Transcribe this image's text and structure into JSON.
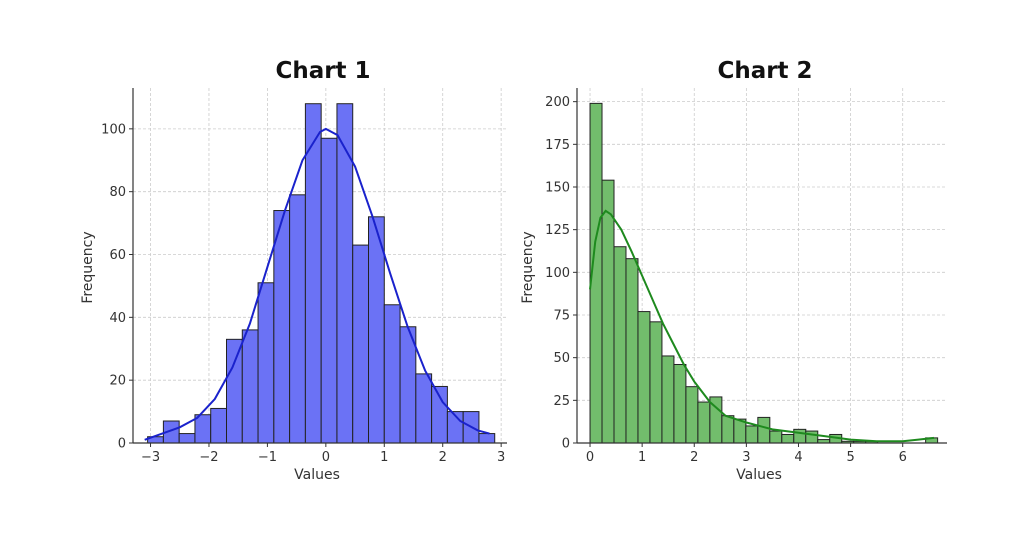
{
  "chart_data": [
    {
      "type": "bar",
      "title": "Chart 1",
      "xlabel": "Values",
      "ylabel": "Frequency",
      "bar_color": "#6b72f5",
      "line_color": "#1a22cc",
      "xlim": [
        -3.3,
        3.1
      ],
      "ylim": [
        0,
        113
      ],
      "xticks": [
        -3,
        -2,
        -1,
        0,
        1,
        2,
        3
      ],
      "xtick_labels": [
        "−3",
        "−2",
        "−1",
        "0",
        "1",
        "2",
        "3"
      ],
      "yticks": [
        0,
        20,
        40,
        60,
        80,
        100
      ],
      "ytick_labels": [
        "0",
        "20",
        "40",
        "60",
        "80",
        "100"
      ],
      "bin_edges": [
        -3.05,
        -2.78,
        -2.51,
        -2.24,
        -1.97,
        -1.7,
        -1.43,
        -1.16,
        -0.89,
        -0.62,
        -0.35,
        -0.08,
        0.19,
        0.46,
        0.73,
        1.0,
        1.27,
        1.54,
        1.81,
        2.08,
        2.35,
        2.62,
        2.89
      ],
      "values": [
        2,
        7,
        3,
        9,
        11,
        33,
        36,
        51,
        74,
        79,
        108,
        97,
        108,
        63,
        72,
        44,
        37,
        22,
        18,
        10,
        10,
        3
      ],
      "kde": {
        "x": [
          -3.1,
          -2.8,
          -2.5,
          -2.2,
          -1.9,
          -1.6,
          -1.3,
          -1.0,
          -0.7,
          -0.4,
          -0.1,
          0.0,
          0.2,
          0.5,
          0.8,
          1.1,
          1.4,
          1.7,
          2.0,
          2.3,
          2.6,
          2.8
        ],
        "y": [
          1,
          3,
          5,
          8,
          14,
          24,
          38,
          56,
          74,
          90,
          99,
          100,
          98,
          88,
          72,
          54,
          37,
          23,
          13,
          7,
          4,
          3
        ]
      },
      "grid": true
    },
    {
      "type": "bar",
      "title": "Chart 2",
      "xlabel": "Values",
      "ylabel": "Frequency",
      "bar_color": "#72bd6c",
      "line_color": "#1e8a1e",
      "xlim": [
        -0.25,
        6.85
      ],
      "ylim": [
        0,
        208
      ],
      "xticks": [
        0,
        1,
        2,
        3,
        4,
        5,
        6
      ],
      "xtick_labels": [
        "0",
        "1",
        "2",
        "3",
        "4",
        "5",
        "6"
      ],
      "yticks": [
        0,
        25,
        50,
        75,
        100,
        125,
        150,
        175,
        200
      ],
      "ytick_labels": [
        "0",
        "25",
        "50",
        "75",
        "100",
        "125",
        "150",
        "175",
        "200"
      ],
      "bin_edges": [
        0.0,
        0.23,
        0.46,
        0.69,
        0.92,
        1.15,
        1.38,
        1.61,
        1.84,
        2.07,
        2.3,
        2.53,
        2.76,
        2.99,
        3.22,
        3.45,
        3.68,
        3.91,
        4.14,
        4.37,
        4.6,
        4.83,
        5.06,
        5.29,
        5.52,
        5.75,
        5.98,
        6.21,
        6.44,
        6.67
      ],
      "values": [
        199,
        154,
        115,
        108,
        77,
        71,
        51,
        46,
        33,
        24,
        27,
        16,
        14,
        10,
        15,
        7,
        5,
        8,
        7,
        2,
        5,
        1,
        1,
        1,
        0,
        0,
        0,
        0,
        3
      ],
      "kde": {
        "x": [
          0.0,
          0.1,
          0.2,
          0.3,
          0.4,
          0.6,
          0.8,
          1.0,
          1.2,
          1.4,
          1.6,
          1.8,
          2.0,
          2.3,
          2.6,
          3.0,
          3.5,
          4.0,
          4.5,
          5.0,
          5.5,
          6.0,
          6.3,
          6.6
        ],
        "y": [
          90,
          118,
          132,
          136,
          134,
          125,
          112,
          98,
          84,
          70,
          58,
          46,
          36,
          24,
          16,
          12,
          8,
          6,
          4,
          2,
          1,
          1,
          2,
          3
        ]
      },
      "grid": true
    }
  ]
}
